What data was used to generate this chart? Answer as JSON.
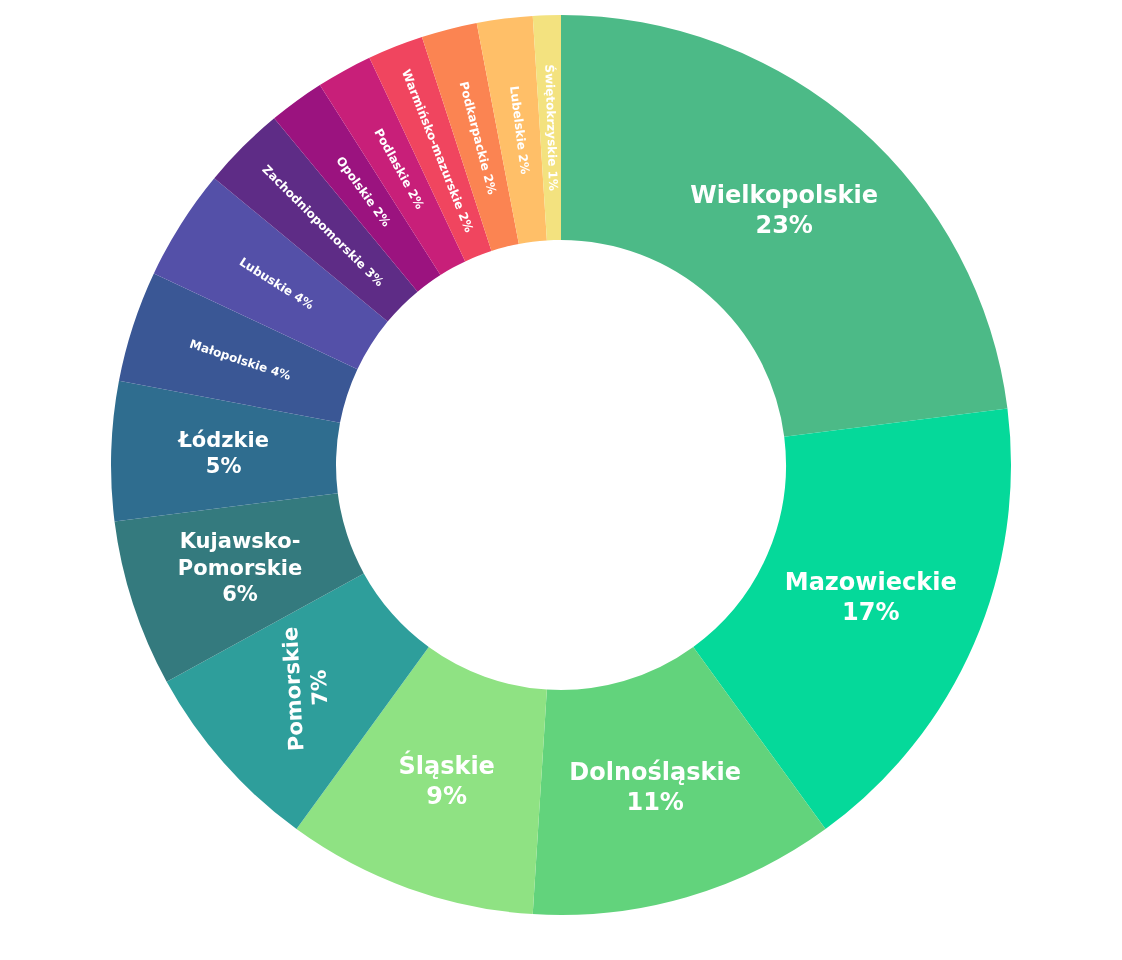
{
  "chart_data": {
    "type": "donut",
    "categories": [
      "Wielkopolskie",
      "Mazowieckie",
      "Dolnośląskie",
      "Śląskie",
      "Pomorskie",
      "Kujawsko-Pomorskie",
      "Łódzkie",
      "Małopolskie",
      "Lubuskie",
      "Zachodniopomorskie",
      "Opolskie",
      "Podlaskie",
      "Warmińsko-mazurskie",
      "Podkarpackie",
      "Lubelskie",
      "Świętokrzyskie"
    ],
    "values": [
      23,
      17,
      11,
      9,
      7,
      6,
      5,
      4,
      4,
      3,
      2,
      2,
      2,
      2,
      2,
      1
    ],
    "value_labels": [
      "23%",
      "17%",
      "11%",
      "9%",
      "7%",
      "6%",
      "5%",
      "4%",
      "4%",
      "3%",
      "2%",
      "2%",
      "2%",
      "2%",
      "2%",
      "1%"
    ],
    "colors": [
      "#4cba87",
      "#05d99a",
      "#62d37c",
      "#8fe283",
      "#2e9e9b",
      "#347a7e",
      "#2f6d8f",
      "#3a5795",
      "#5450a8",
      "#5e2c86",
      "#9b137f",
      "#c81f79",
      "#f0455f",
      "#fb8452",
      "#ffbf68",
      "#f3e27f"
    ]
  }
}
